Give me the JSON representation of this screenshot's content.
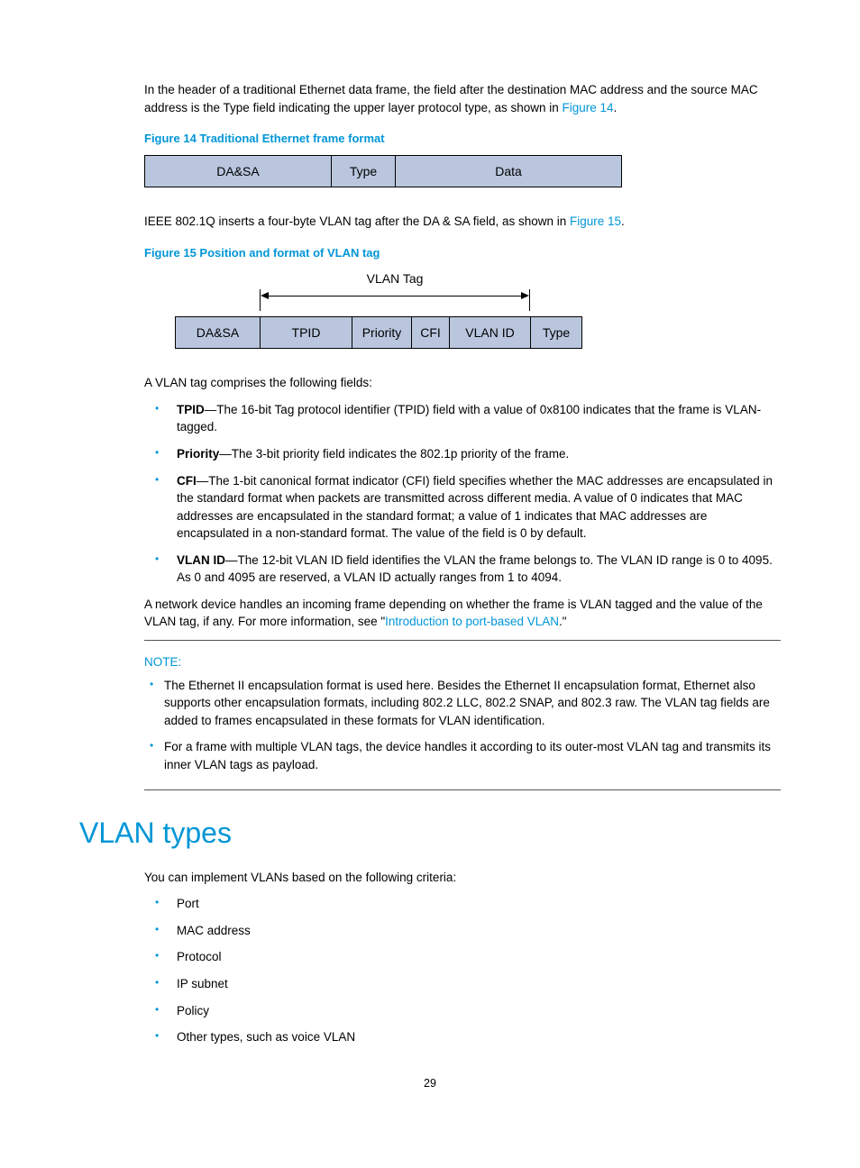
{
  "intro": {
    "p1a": "In the header of a traditional Ethernet data frame, the field after the destination MAC address and the source MAC address is the Type field indicating the upper layer protocol type, as shown in ",
    "p1link": "Figure 14",
    "p1b": "."
  },
  "figure14": {
    "caption": "Figure 14 Traditional Ethernet frame format",
    "cells": {
      "c1": "DA&SA",
      "c2": "Type",
      "c3": "Data"
    },
    "cell_bg": "#b9c6de"
  },
  "mid": {
    "p2a": "IEEE 802.1Q inserts a four-byte VLAN tag after the DA & SA field, as shown in ",
    "p2link": "Figure 15",
    "p2b": "."
  },
  "figure15": {
    "caption": "Figure 15 Position and format of VLAN tag",
    "tag_label": "VLAN Tag",
    "cells": {
      "c1": "DA&SA",
      "c2": "TPID",
      "c3": "Priority",
      "c4": "CFI",
      "c5": "VLAN ID",
      "c6": "Type"
    }
  },
  "fields_intro": "A VLAN tag comprises the following fields:",
  "fields": {
    "tpid_b": "TPID",
    "tpid_t": "—The 16-bit Tag protocol identifier (TPID) field with a value of 0x8100 indicates that the frame is VLAN-tagged.",
    "prio_b": "Priority",
    "prio_t": "—The 3-bit priority field indicates the 802.1p priority of the frame.",
    "cfi_b": "CFI",
    "cfi_t": "—The 1-bit canonical format indicator (CFI) field specifies whether the MAC addresses are encapsulated in the standard format when packets are transmitted across different media. A value of 0 indicates that MAC addresses are encapsulated in the standard format; a value of 1 indicates that MAC addresses are encapsulated in a non-standard format. The value of the field is 0 by default.",
    "vid_b": "VLAN ID",
    "vid_t": "—The 12-bit VLAN ID field identifies the VLAN the frame belongs to. The VLAN ID range is 0 to 4095. As 0 and 4095 are reserved, a VLAN ID actually ranges from 1 to 4094."
  },
  "handling": {
    "a": "A network device handles an incoming frame depending on whether the frame is VLAN tagged and the value of the VLAN tag, if any. For more information, see \"",
    "link": "Introduction to port-based VLAN",
    "b": ".\""
  },
  "note": {
    "label": "NOTE:",
    "n1": "The Ethernet II encapsulation format is used here. Besides the Ethernet II encapsulation format, Ethernet also supports other encapsulation formats, including 802.2 LLC, 802.2 SNAP, and 802.3 raw. The VLAN tag fields are added to frames encapsulated in these formats for VLAN identification.",
    "n2": "For a frame with multiple VLAN tags, the device handles it according to its outer-most VLAN tag and transmits its inner VLAN tags as payload."
  },
  "types": {
    "heading": "VLAN types",
    "intro": "You can implement VLANs based on the following criteria:",
    "items": {
      "i1": "Port",
      "i2": "MAC address",
      "i3": "Protocol",
      "i4": "IP subnet",
      "i5": "Policy",
      "i6": "Other types, such as voice VLAN"
    }
  },
  "page_number": "29",
  "colors": {
    "accent": "#0096d6"
  }
}
